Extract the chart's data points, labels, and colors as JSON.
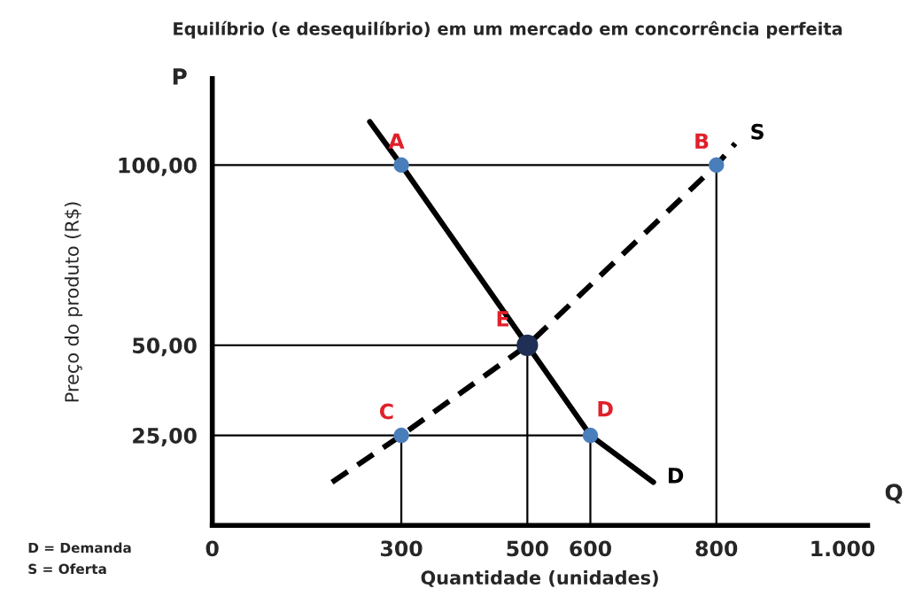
{
  "chart_data": {
    "type": "line",
    "title": "Equilíbrio (e desequilíbrio) em um mercado em concorrência perfeita",
    "xlabel": "Quantidade (unidades)",
    "ylabel": "Preço do produto (R$)",
    "xlim": [
      0,
      1040
    ],
    "ylim": [
      0,
      124
    ],
    "xticks": [
      0,
      300,
      500,
      600,
      800,
      {
        "value": 1000,
        "label": "1.000"
      }
    ],
    "yticks": [
      {
        "value": 25,
        "label": "25,00"
      },
      {
        "value": 50,
        "label": "50,00"
      },
      {
        "value": 100,
        "label": "100,00"
      }
    ],
    "grid": false,
    "series": [
      {
        "color": "#000000",
        "x": [
          0,
          800
        ],
        "values": [
          100,
          100
        ]
      },
      {
        "color": "#000000",
        "x": [
          0,
          500
        ],
        "values": [
          50,
          50
        ]
      },
      {
        "color": "#000000",
        "x": [
          0,
          600
        ],
        "values": [
          25,
          25
        ]
      },
      {
        "color": "#000000",
        "x": [
          300,
          300
        ],
        "values": [
          0,
          25
        ]
      },
      {
        "color": "#000000",
        "x": [
          500,
          500
        ],
        "values": [
          0,
          50
        ]
      },
      {
        "color": "#000000",
        "x": [
          600,
          600
        ],
        "values": [
          0,
          25
        ]
      },
      {
        "color": "#000000",
        "x": [
          800,
          800
        ],
        "values": [
          0,
          100
        ]
      },
      {
        "line_style": "solid",
        "color": "#000000",
        "x": [
          250,
          300,
          500,
          600,
          700
        ],
        "values": [
          112,
          100,
          50,
          25,
          12
        ]
      },
      {
        "line_style": "dashed",
        "color": "#000000",
        "x": [
          190,
          300,
          500,
          800,
          830
        ],
        "values": [
          12,
          25,
          50,
          100,
          106
        ]
      },
      {
        "type": "scatter",
        "marker": "circle",
        "color": "#4a7ebb",
        "x": [
          300,
          800,
          300,
          600
        ],
        "values": [
          100,
          100,
          25,
          25
        ]
      },
      {
        "type": "scatter",
        "marker": "circle",
        "color": "#1f2f55",
        "x": [
          500
        ],
        "values": [
          50
        ]
      }
    ],
    "annotations": [
      {
        "text": "A",
        "x": 300,
        "y": 100
      },
      {
        "text": "B",
        "x": 800,
        "y": 100
      },
      {
        "text": "C",
        "x": 300,
        "y": 25
      },
      {
        "text": "D",
        "x": 600,
        "y": 25
      },
      {
        "text": "E",
        "x": 500,
        "y": 50
      },
      {
        "text": "S",
        "x": 830,
        "y": 106
      },
      {
        "text": "D",
        "x": 700,
        "y": 12
      },
      "P",
      "Q",
      "D = Demanda",
      "S = Oferta"
    ]
  }
}
